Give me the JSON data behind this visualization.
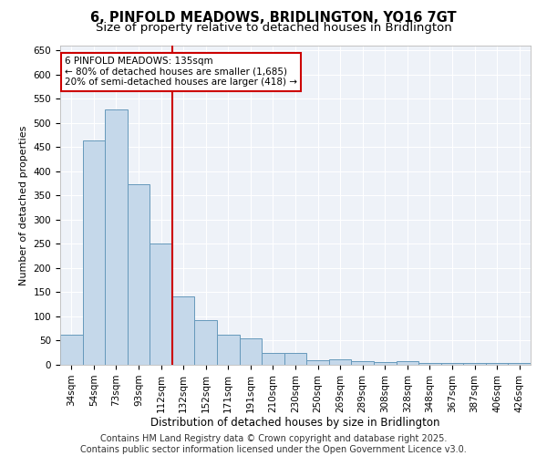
{
  "title": "6, PINFOLD MEADOWS, BRIDLINGTON, YO16 7GT",
  "subtitle": "Size of property relative to detached houses in Bridlington",
  "xlabel": "Distribution of detached houses by size in Bridlington",
  "ylabel": "Number of detached properties",
  "categories": [
    "34sqm",
    "54sqm",
    "73sqm",
    "93sqm",
    "112sqm",
    "132sqm",
    "152sqm",
    "171sqm",
    "191sqm",
    "210sqm",
    "230sqm",
    "250sqm",
    "269sqm",
    "289sqm",
    "308sqm",
    "328sqm",
    "348sqm",
    "367sqm",
    "387sqm",
    "406sqm",
    "426sqm"
  ],
  "values": [
    62,
    463,
    528,
    373,
    250,
    142,
    93,
    62,
    54,
    25,
    25,
    10,
    11,
    8,
    6,
    7,
    4,
    4,
    4,
    4,
    3
  ],
  "bar_color": "#c5d8ea",
  "bar_edge_color": "#6699bb",
  "vline_x_index": 5,
  "vline_color": "#cc0000",
  "annotation_text": "6 PINFOLD MEADOWS: 135sqm\n← 80% of detached houses are smaller (1,685)\n20% of semi-detached houses are larger (418) →",
  "annotation_box_facecolor": "white",
  "annotation_box_edgecolor": "#cc0000",
  "annotation_text_color": "black",
  "ylim": [
    0,
    660
  ],
  "yticks": [
    0,
    50,
    100,
    150,
    200,
    250,
    300,
    350,
    400,
    450,
    500,
    550,
    600,
    650
  ],
  "footer_text": "Contains HM Land Registry data © Crown copyright and database right 2025.\nContains public sector information licensed under the Open Government Licence v3.0.",
  "background_color": "#ffffff",
  "plot_bg_color": "#eef2f8",
  "title_fontsize": 10.5,
  "subtitle_fontsize": 9.5,
  "xlabel_fontsize": 8.5,
  "ylabel_fontsize": 8,
  "tick_fontsize": 7.5,
  "annotation_fontsize": 7.5,
  "footer_fontsize": 7
}
